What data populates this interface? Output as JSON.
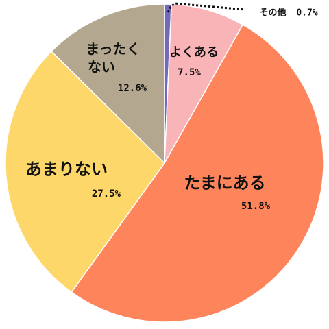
{
  "chart_data": {
    "type": "pie",
    "start": "top",
    "direction": "clockwise",
    "slices": [
      {
        "name_lines": [
          "その他"
        ],
        "value": 0.7,
        "pct_text": "0.7%",
        "color": "#7468b8"
      },
      {
        "name_lines": [
          "よくある"
        ],
        "value": 7.5,
        "pct_text": "7.5%",
        "color": "#f9b4b8"
      },
      {
        "name_lines": [
          "たまにある"
        ],
        "value": 51.8,
        "pct_text": "51.8%",
        "color": "#fe845c"
      },
      {
        "name_lines": [
          "あまりない"
        ],
        "value": 27.5,
        "pct_text": "27.5%",
        "color": "#fdd76a"
      },
      {
        "name_lines": [
          "まったく",
          "ない"
        ],
        "value": 12.6,
        "pct_text": "12.6%",
        "color": "#b3a88f"
      }
    ]
  }
}
